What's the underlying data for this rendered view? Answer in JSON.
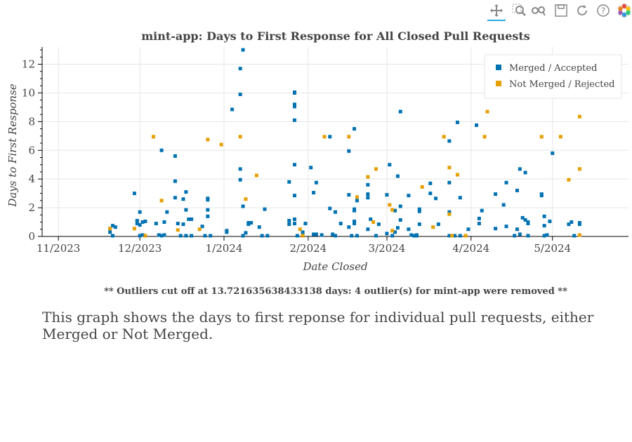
{
  "toolbar": {
    "tools": [
      {
        "name": "pan-tool",
        "icon": "pan-icon",
        "active": true
      },
      {
        "name": "box-zoom-tool",
        "icon": "box-zoom-icon",
        "active": false
      },
      {
        "name": "wheel-zoom-tool",
        "icon": "wheel-zoom-icon",
        "active": false
      },
      {
        "name": "save-tool",
        "icon": "save-icon",
        "active": false
      },
      {
        "name": "reset-tool",
        "icon": "reset-icon",
        "active": false
      },
      {
        "name": "help-tool",
        "icon": "help-icon",
        "active": false
      },
      {
        "name": "bokeh-logo",
        "icon": "bokeh-logo-icon",
        "active": false
      }
    ]
  },
  "footnote": "** Outliers cut off at 13.721635638433138 days: 4 outlier(s) for mint-app were removed **",
  "caption": "This graph shows the days to first reponse for individual pull requests, either Merged or Not Merged.",
  "chart_data": {
    "type": "scatter",
    "title": "mint-app: Days to First Response for All Closed Pull Requests",
    "xlabel": "Date Closed",
    "ylabel": "Days to First Response",
    "xlim": [
      "2023-10-26",
      "2024-05-29"
    ],
    "ylim": [
      0,
      13.2
    ],
    "x_ticks": [
      "2023-11-01",
      "2023-12-01",
      "2024-01-01",
      "2024-02-01",
      "2024-03-01",
      "2024-04-01",
      "2024-05-01"
    ],
    "x_tick_labels": [
      "11/2023",
      "12/2023",
      "1/2024",
      "2/2024",
      "3/2024",
      "4/2024",
      "5/2024"
    ],
    "y_ticks": [
      0,
      2,
      4,
      6,
      8,
      10,
      12
    ],
    "y_tick_labels": [
      "0",
      "2",
      "4",
      "6",
      "8",
      "10",
      "12"
    ],
    "grid": true,
    "legend_position": "top-right",
    "colors": {
      "merged": "#0072B2",
      "not_merged": "#E69F00"
    },
    "series": [
      {
        "name": "Merged / Accepted",
        "color": "#0072B2",
        "points": [
          [
            "2023-11-20",
            0.3
          ],
          [
            "2023-11-20",
            0.55
          ],
          [
            "2023-11-21",
            0.75
          ],
          [
            "2023-11-22",
            0.65
          ],
          [
            "2023-11-21",
            0.05
          ],
          [
            "2023-11-29",
            3.0
          ],
          [
            "2023-11-30",
            0.9
          ],
          [
            "2023-11-30",
            1.1
          ],
          [
            "2023-12-01",
            1.7
          ],
          [
            "2023-12-01",
            0.8
          ],
          [
            "2023-12-02",
            1.0
          ],
          [
            "2023-12-01",
            0.05
          ],
          [
            "2023-12-02",
            0.1
          ],
          [
            "2023-12-03",
            1.05
          ],
          [
            "2023-12-07",
            0.9
          ],
          [
            "2023-12-08",
            0.1
          ],
          [
            "2023-12-09",
            6.0
          ],
          [
            "2023-12-09",
            0.05
          ],
          [
            "2023-12-10",
            1.0
          ],
          [
            "2023-12-11",
            1.7
          ],
          [
            "2023-12-10",
            0.1
          ],
          [
            "2023-12-14",
            3.85
          ],
          [
            "2023-12-14",
            5.6
          ],
          [
            "2023-12-14",
            2.7
          ],
          [
            "2023-12-15",
            0.9
          ],
          [
            "2023-12-16",
            0.05
          ],
          [
            "2023-12-17",
            2.6
          ],
          [
            "2023-12-17",
            0.85
          ],
          [
            "2023-12-18",
            3.1
          ],
          [
            "2023-12-19",
            1.2
          ],
          [
            "2023-12-20",
            1.2
          ],
          [
            "2023-12-18",
            1.85
          ],
          [
            "2023-12-18",
            0.05
          ],
          [
            "2023-12-20",
            0.05
          ],
          [
            "2023-12-24",
            0.7
          ],
          [
            "2023-12-25",
            0.05
          ],
          [
            "2023-12-26",
            2.55
          ],
          [
            "2023-12-26",
            2.65
          ],
          [
            "2023-12-26",
            1.85
          ],
          [
            "2023-12-26",
            1.4
          ],
          [
            "2023-12-27",
            0.05
          ],
          [
            "2024-01-02",
            0.3
          ],
          [
            "2024-01-02",
            0.4
          ],
          [
            "2024-01-04",
            8.85
          ],
          [
            "2024-01-08",
            13.0
          ],
          [
            "2024-01-07",
            11.7
          ],
          [
            "2024-01-07",
            9.9
          ],
          [
            "2024-01-07",
            4.7
          ],
          [
            "2024-01-07",
            3.95
          ],
          [
            "2024-01-08",
            2.1
          ],
          [
            "2024-01-09",
            0.25
          ],
          [
            "2024-01-10",
            0.95
          ],
          [
            "2024-01-10",
            0.85
          ],
          [
            "2024-01-11",
            0.95
          ],
          [
            "2024-01-08",
            0.05
          ],
          [
            "2024-01-14",
            0.65
          ],
          [
            "2024-01-15",
            0.05
          ],
          [
            "2024-01-16",
            1.9
          ],
          [
            "2024-01-17",
            0.05
          ],
          [
            "2024-01-25",
            3.8
          ],
          [
            "2024-01-25",
            1.1
          ],
          [
            "2024-01-25",
            0.85
          ],
          [
            "2024-01-27",
            10.05
          ],
          [
            "2024-01-27",
            10.0
          ],
          [
            "2024-01-27",
            9.2
          ],
          [
            "2024-01-27",
            9.05
          ],
          [
            "2024-01-27",
            8.1
          ],
          [
            "2024-01-27",
            5.0
          ],
          [
            "2024-01-27",
            2.85
          ],
          [
            "2024-01-27",
            1.2
          ],
          [
            "2024-01-27",
            0.9
          ],
          [
            "2024-01-28",
            0.05
          ],
          [
            "2024-01-30",
            0.3
          ],
          [
            "2024-01-30",
            0.05
          ],
          [
            "2024-01-31",
            0.9
          ],
          [
            "2024-02-02",
            4.8
          ],
          [
            "2024-02-03",
            0.15
          ],
          [
            "2024-02-03",
            3.05
          ],
          [
            "2024-02-04",
            3.75
          ],
          [
            "2024-02-04",
            0.15
          ],
          [
            "2024-02-06",
            0.1
          ],
          [
            "2024-02-09",
            6.95
          ],
          [
            "2024-02-09",
            1.95
          ],
          [
            "2024-02-10",
            0.15
          ],
          [
            "2024-02-11",
            1.7
          ],
          [
            "2024-02-11",
            0.05
          ],
          [
            "2024-02-13",
            0.9
          ],
          [
            "2024-02-16",
            5.95
          ],
          [
            "2024-02-16",
            2.9
          ],
          [
            "2024-02-16",
            0.65
          ],
          [
            "2024-02-17",
            0.05
          ],
          [
            "2024-02-18",
            7.5
          ],
          [
            "2024-02-18",
            1.8
          ],
          [
            "2024-02-18",
            1.9
          ],
          [
            "2024-02-18",
            0.9
          ],
          [
            "2024-02-18",
            1.05
          ],
          [
            "2024-02-19",
            2.5
          ],
          [
            "2024-02-19",
            0.05
          ],
          [
            "2024-02-23",
            3.6
          ],
          [
            "2024-02-23",
            2.95
          ],
          [
            "2024-02-23",
            2.7
          ],
          [
            "2024-02-23",
            0.5
          ],
          [
            "2024-02-24",
            1.2
          ],
          [
            "2024-02-26",
            0.05
          ],
          [
            "2024-02-27",
            0.85
          ],
          [
            "2024-03-01",
            2.9
          ],
          [
            "2024-03-02",
            5.0
          ],
          [
            "2024-03-01",
            0.2
          ],
          [
            "2024-03-03",
            0.05
          ],
          [
            "2024-03-04",
            0.3
          ],
          [
            "2024-03-04",
            1.8
          ],
          [
            "2024-03-05",
            4.2
          ],
          [
            "2024-03-05",
            0.6
          ],
          [
            "2024-03-06",
            1.15
          ],
          [
            "2024-03-06",
            2.1
          ],
          [
            "2024-03-06",
            8.7
          ],
          [
            "2024-03-09",
            2.85
          ],
          [
            "2024-03-09",
            0.5
          ],
          [
            "2024-03-10",
            0.1
          ],
          [
            "2024-03-11",
            0.05
          ],
          [
            "2024-03-12",
            0.1
          ],
          [
            "2024-03-12",
            0.05
          ],
          [
            "2024-03-13",
            1.9
          ],
          [
            "2024-03-13",
            1.75
          ],
          [
            "2024-03-13",
            0.85
          ],
          [
            "2024-03-17",
            3.7
          ],
          [
            "2024-03-17",
            3.0
          ],
          [
            "2024-03-19",
            2.65
          ],
          [
            "2024-03-20",
            0.85
          ],
          [
            "2024-03-24",
            6.65
          ],
          [
            "2024-03-24",
            3.75
          ],
          [
            "2024-03-24",
            1.7
          ],
          [
            "2024-03-24",
            0.05
          ],
          [
            "2024-03-26",
            0.05
          ],
          [
            "2024-03-27",
            7.95
          ],
          [
            "2024-03-28",
            2.7
          ],
          [
            "2024-03-28",
            0.05
          ],
          [
            "2024-03-31",
            0.5
          ],
          [
            "2024-04-03",
            7.75
          ],
          [
            "2024-04-04",
            1.25
          ],
          [
            "2024-04-04",
            0.9
          ],
          [
            "2024-04-05",
            1.8
          ],
          [
            "2024-04-10",
            2.95
          ],
          [
            "2024-04-10",
            0.55
          ],
          [
            "2024-04-13",
            2.2
          ],
          [
            "2024-04-14",
            3.75
          ],
          [
            "2024-04-14",
            0.7
          ],
          [
            "2024-04-17",
            0.05
          ],
          [
            "2024-04-18",
            0.5
          ],
          [
            "2024-04-18",
            3.2
          ],
          [
            "2024-04-19",
            4.7
          ],
          [
            "2024-04-19",
            0.15
          ],
          [
            "2024-04-20",
            1.3
          ],
          [
            "2024-04-21",
            1.15
          ],
          [
            "2024-04-21",
            4.45
          ],
          [
            "2024-04-22",
            0.9
          ],
          [
            "2024-04-22",
            0.05
          ],
          [
            "2024-04-22",
            1.0
          ],
          [
            "2024-04-27",
            2.85
          ],
          [
            "2024-04-27",
            2.95
          ],
          [
            "2024-04-28",
            1.4
          ],
          [
            "2024-04-28",
            0.75
          ],
          [
            "2024-04-28",
            0.05
          ],
          [
            "2024-04-29",
            0.1
          ],
          [
            "2024-04-30",
            1.05
          ],
          [
            "2024-05-01",
            5.8
          ],
          [
            "2024-05-07",
            0.85
          ],
          [
            "2024-05-08",
            1.0
          ],
          [
            "2024-05-09",
            0.05
          ],
          [
            "2024-05-11",
            0.85
          ],
          [
            "2024-05-11",
            0.95
          ]
        ]
      },
      {
        "name": "Not Merged / Rejected",
        "color": "#E69F00",
        "points": [
          [
            "2023-11-20",
            0.55
          ],
          [
            "2023-11-29",
            0.55
          ],
          [
            "2023-12-03",
            0.05
          ],
          [
            "2023-12-06",
            6.95
          ],
          [
            "2023-12-09",
            2.5
          ],
          [
            "2023-12-15",
            0.45
          ],
          [
            "2023-12-23",
            0.5
          ],
          [
            "2023-12-26",
            6.75
          ],
          [
            "2023-12-31",
            6.4
          ],
          [
            "2024-01-07",
            6.95
          ],
          [
            "2024-01-09",
            2.6
          ],
          [
            "2024-01-13",
            4.25
          ],
          [
            "2024-01-29",
            0.5
          ],
          [
            "2024-01-30",
            0.05
          ],
          [
            "2024-02-07",
            6.95
          ],
          [
            "2024-02-16",
            6.95
          ],
          [
            "2024-02-19",
            2.75
          ],
          [
            "2024-02-23",
            4.15
          ],
          [
            "2024-02-25",
            1.0
          ],
          [
            "2024-02-26",
            4.7
          ],
          [
            "2024-03-02",
            2.2
          ],
          [
            "2024-03-03",
            1.85
          ],
          [
            "2024-03-03",
            0.4
          ],
          [
            "2024-03-14",
            3.45
          ],
          [
            "2024-03-18",
            0.65
          ],
          [
            "2024-03-22",
            6.95
          ],
          [
            "2024-03-24",
            4.8
          ],
          [
            "2024-03-24",
            1.55
          ],
          [
            "2024-03-25",
            0.05
          ],
          [
            "2024-03-27",
            4.3
          ],
          [
            "2024-03-30",
            0.05
          ],
          [
            "2024-04-06",
            6.95
          ],
          [
            "2024-04-07",
            8.7
          ],
          [
            "2024-04-27",
            6.95
          ],
          [
            "2024-05-04",
            6.95
          ],
          [
            "2024-05-07",
            3.95
          ],
          [
            "2024-05-11",
            4.7
          ],
          [
            "2024-05-11",
            8.35
          ],
          [
            "2024-05-11",
            0.1
          ]
        ]
      }
    ]
  }
}
